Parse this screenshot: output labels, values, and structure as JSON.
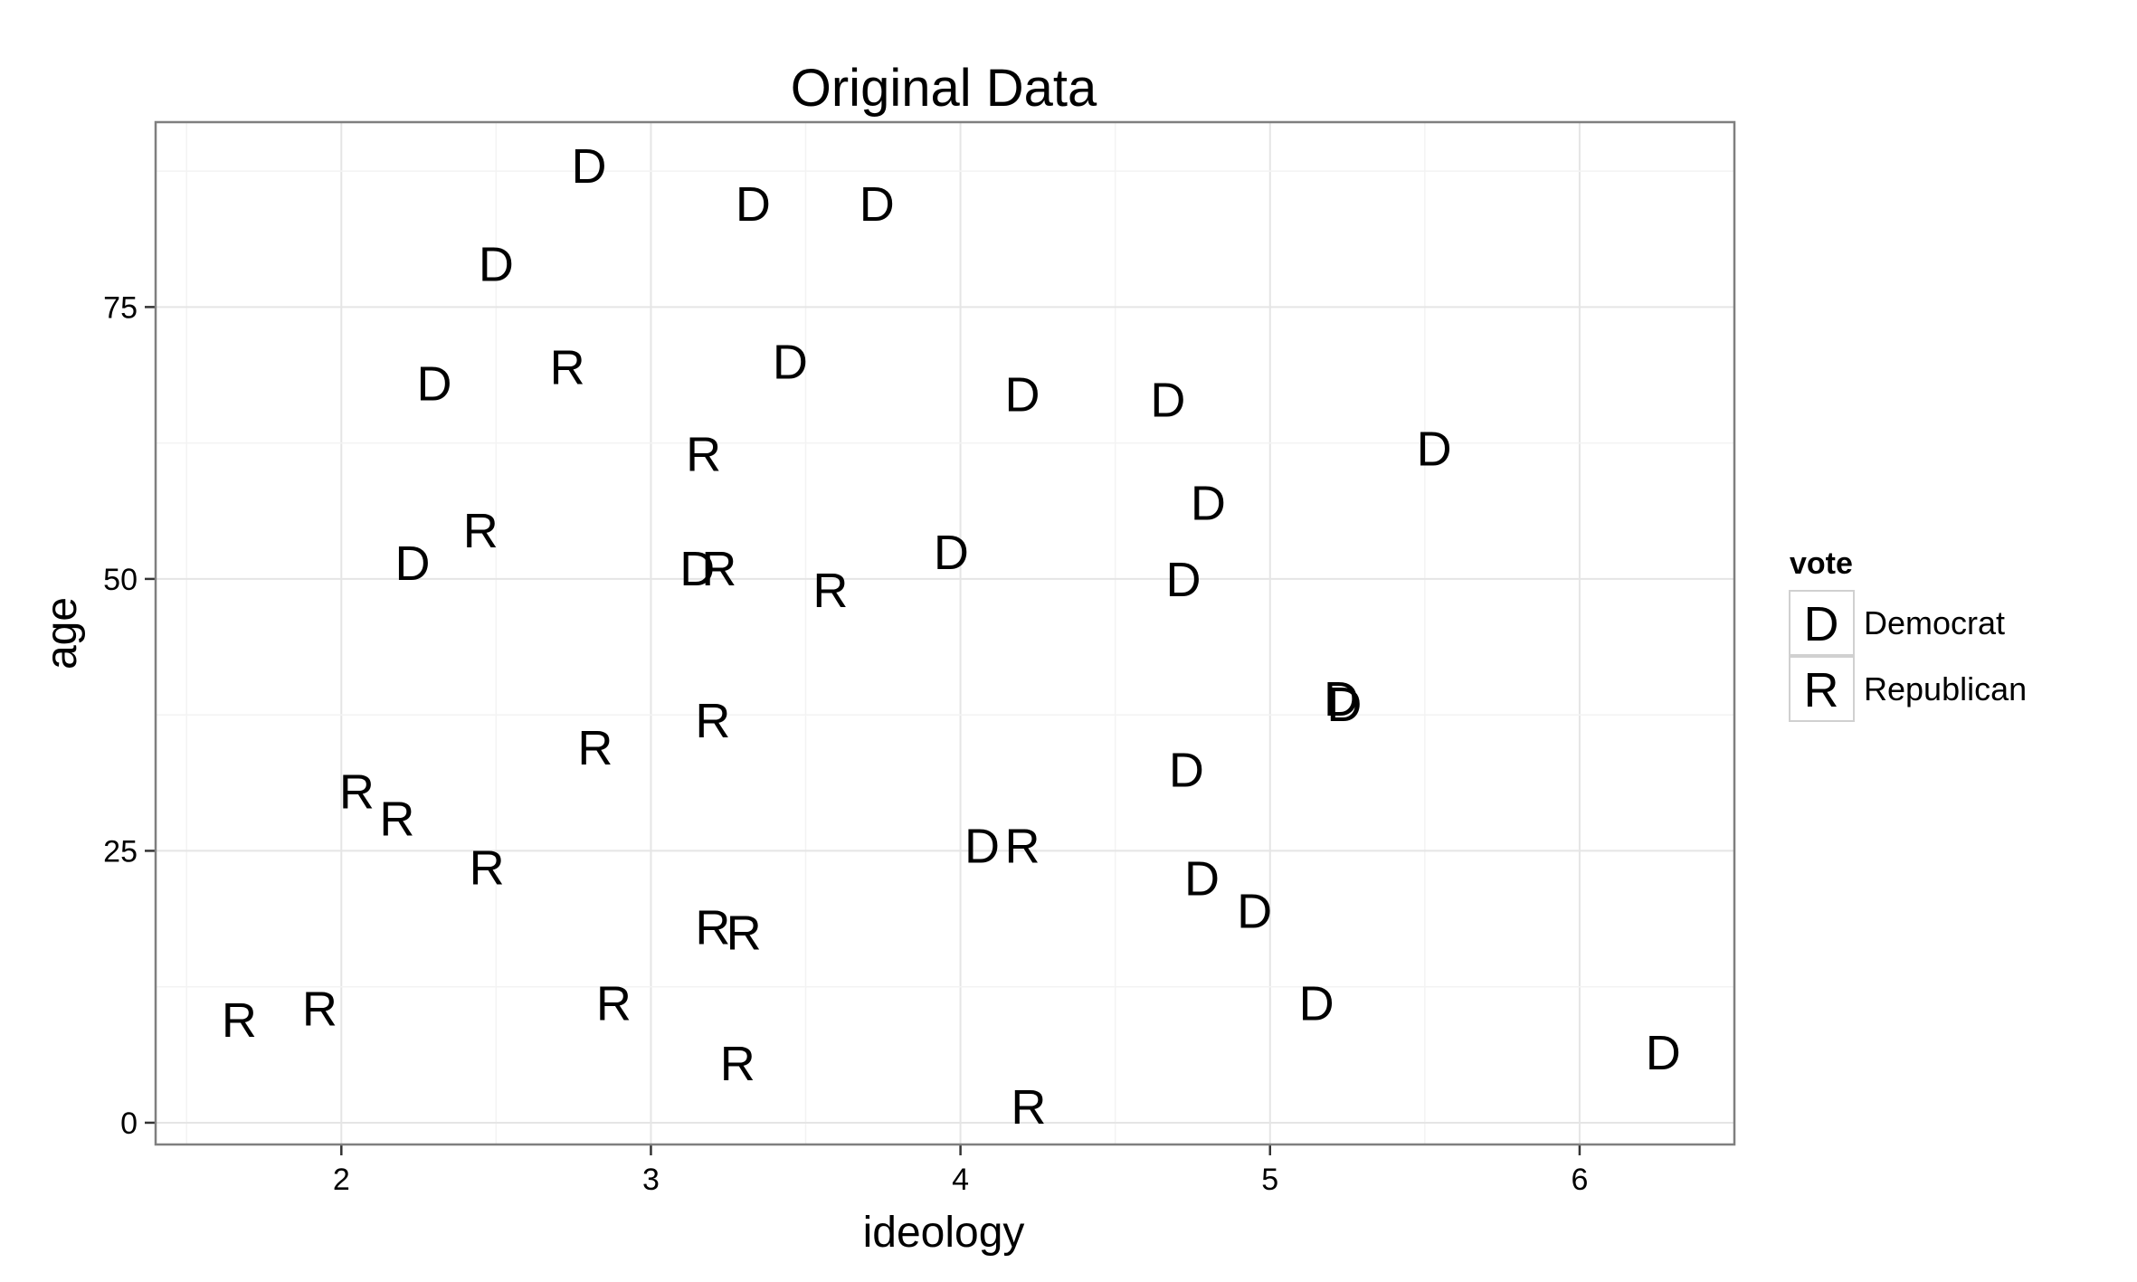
{
  "chart_data": {
    "type": "scatter",
    "title": "Original Data",
    "xlabel": "ideology",
    "ylabel": "age",
    "xlim": [
      1.4,
      6.5
    ],
    "ylim": [
      -2,
      92
    ],
    "x_ticks": [
      2,
      3,
      4,
      5,
      6
    ],
    "y_ticks": [
      0,
      25,
      50,
      75
    ],
    "grid": true,
    "legend": {
      "title": "vote",
      "placement": "right",
      "entries": [
        {
          "symbol": "D",
          "label": "Democrat"
        },
        {
          "symbol": "R",
          "label": "Republican"
        }
      ]
    },
    "series": [
      {
        "name": "Democrat",
        "symbol": "D",
        "points": [
          {
            "x": 2.8,
            "y": 88
          },
          {
            "x": 3.33,
            "y": 84.5
          },
          {
            "x": 3.73,
            "y": 84.5
          },
          {
            "x": 2.5,
            "y": 79
          },
          {
            "x": 2.3,
            "y": 68
          },
          {
            "x": 3.45,
            "y": 70
          },
          {
            "x": 4.2,
            "y": 67
          },
          {
            "x": 4.67,
            "y": 66.5
          },
          {
            "x": 5.53,
            "y": 62
          },
          {
            "x": 4.8,
            "y": 57
          },
          {
            "x": 2.23,
            "y": 51.5
          },
          {
            "x": 3.15,
            "y": 51
          },
          {
            "x": 3.97,
            "y": 52.5
          },
          {
            "x": 4.72,
            "y": 50
          },
          {
            "x": 5.23,
            "y": 39
          },
          {
            "x": 5.24,
            "y": 38.5
          },
          {
            "x": 4.73,
            "y": 32.5
          },
          {
            "x": 4.07,
            "y": 25.5
          },
          {
            "x": 4.78,
            "y": 22.5
          },
          {
            "x": 4.95,
            "y": 19.5
          },
          {
            "x": 5.15,
            "y": 11
          },
          {
            "x": 6.27,
            "y": 6.5
          }
        ]
      },
      {
        "name": "Republican",
        "symbol": "R",
        "points": [
          {
            "x": 2.73,
            "y": 69.5
          },
          {
            "x": 3.17,
            "y": 61.5
          },
          {
            "x": 2.45,
            "y": 54.5
          },
          {
            "x": 3.22,
            "y": 51
          },
          {
            "x": 3.58,
            "y": 49
          },
          {
            "x": 3.2,
            "y": 37
          },
          {
            "x": 2.82,
            "y": 34.5
          },
          {
            "x": 2.05,
            "y": 30.5
          },
          {
            "x": 2.18,
            "y": 28
          },
          {
            "x": 2.47,
            "y": 23.5
          },
          {
            "x": 4.2,
            "y": 25.5
          },
          {
            "x": 3.2,
            "y": 18
          },
          {
            "x": 3.3,
            "y": 17.5
          },
          {
            "x": 1.67,
            "y": 9.5
          },
          {
            "x": 1.93,
            "y": 10.5
          },
          {
            "x": 2.88,
            "y": 11
          },
          {
            "x": 3.28,
            "y": 5.5
          },
          {
            "x": 4.22,
            "y": 1.5
          }
        ]
      }
    ]
  }
}
